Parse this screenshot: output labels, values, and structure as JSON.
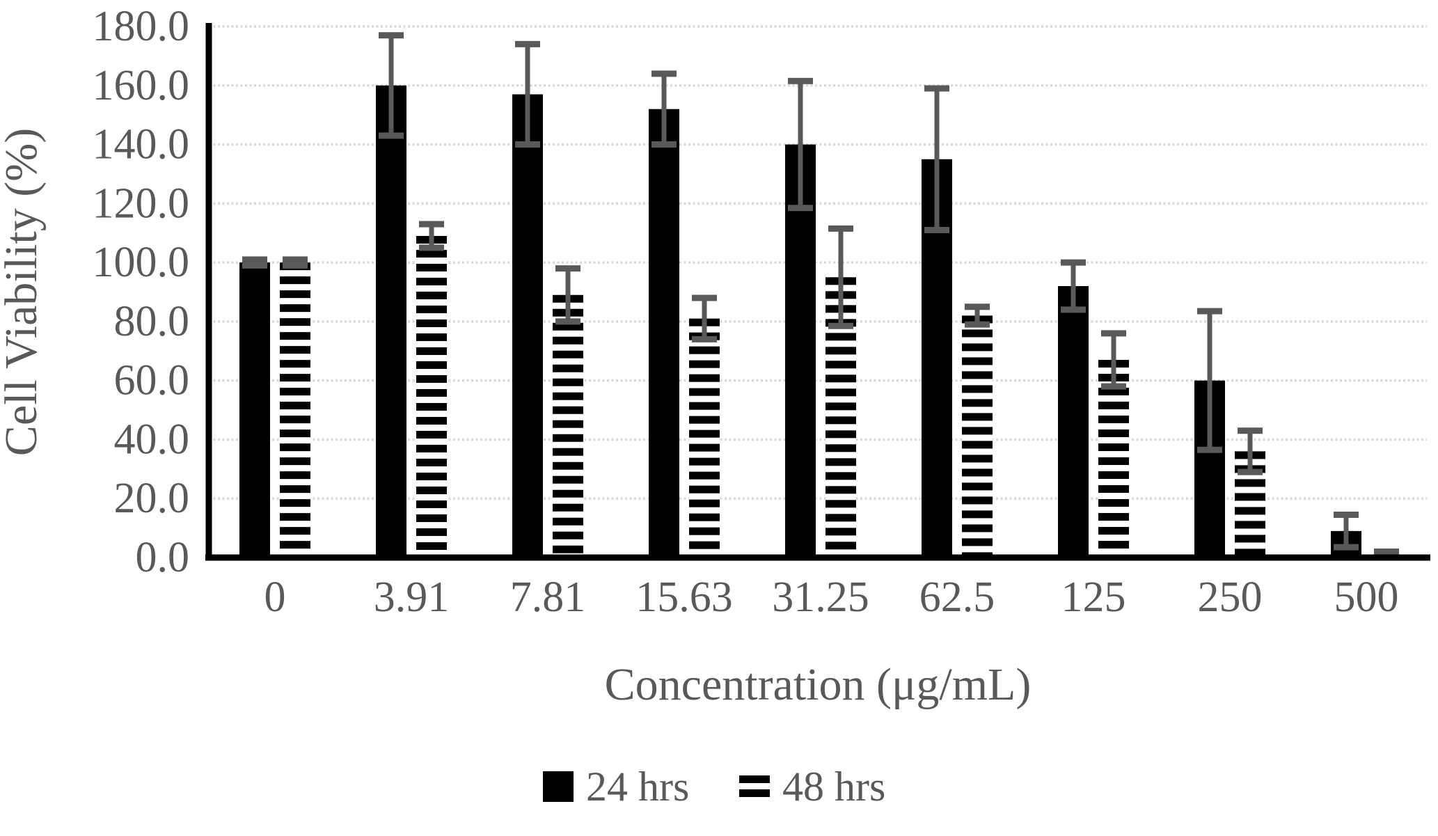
{
  "chart_data": {
    "type": "bar",
    "categories": [
      "0",
      "3.91",
      "7.81",
      "15.63",
      "31.25",
      "62.5",
      "125",
      "250",
      "500"
    ],
    "series": [
      {
        "name": "24 hrs",
        "style": "solid",
        "color": "#000000",
        "values": [
          100.0,
          160.0,
          157.0,
          152.0,
          140.0,
          135.0,
          92.0,
          60.0,
          9.0
        ],
        "errors": [
          1.0,
          17.0,
          17.0,
          12.0,
          21.5,
          24.0,
          8.0,
          23.5,
          5.5
        ]
      },
      {
        "name": "48 hrs",
        "style": "striped",
        "color": "#000000",
        "values": [
          100.0,
          109.0,
          89.0,
          81.0,
          95.0,
          82.0,
          67.0,
          36.0,
          1.0
        ],
        "errors": [
          1.0,
          4.0,
          9.0,
          7.0,
          16.5,
          3.0,
          9.0,
          7.0,
          1.0
        ]
      }
    ],
    "title": "",
    "xlabel": "Concentration (μg/mL)",
    "ylabel": "Cell Viability (%)",
    "ylim": [
      0,
      180
    ],
    "ytick_step": 20,
    "ytick_labels": [
      "0.0",
      "20.0",
      "40.0",
      "60.0",
      "80.0",
      "100.0",
      "120.0",
      "140.0",
      "160.0",
      "180.0"
    ],
    "grid": "horizontal-only",
    "legend_position": "bottom-center",
    "colors": {
      "bar": "#000000",
      "error_bar": "#595959",
      "gridline": "#d9d9d9",
      "axis_line": "#000000",
      "text": "#595959",
      "background": "#ffffff"
    }
  }
}
